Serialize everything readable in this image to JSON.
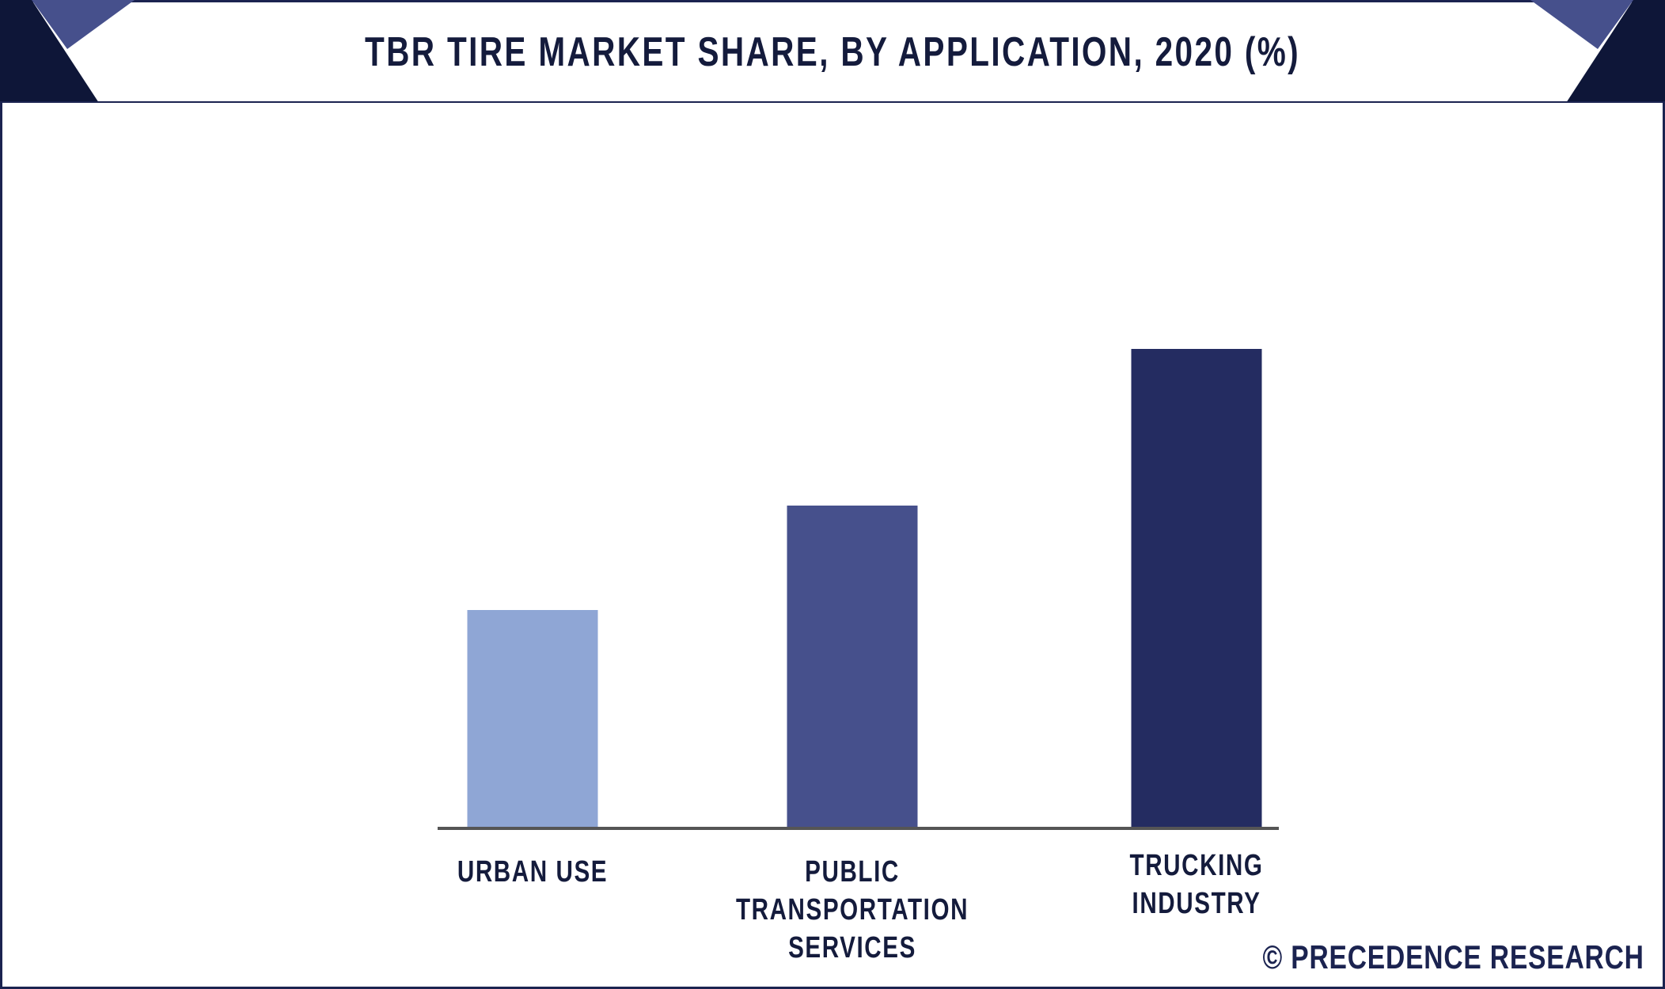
{
  "header": {
    "title": "TBR TIRE MARKET SHARE, BY APPLICATION, 2020 (%)"
  },
  "colors": {
    "navy": "#1b2350",
    "accent": "#46508c"
  },
  "chart_data": {
    "type": "bar",
    "title": "TBR TIRE MARKET SHARE, BY APPLICATION, 2020 (%)",
    "categories": [
      "URBAN USE",
      "PUBLIC TRANSPORTATION SERVICES",
      "TRUCKING INDUSTRY"
    ],
    "category_lines": [
      [
        "URBAN USE"
      ],
      [
        "PUBLIC TRANSPORTATION",
        "SERVICES"
      ],
      [
        "TRUCKING",
        "INDUSTRY"
      ]
    ],
    "values": [
      23,
      34,
      50.5
    ],
    "colors": [
      "#8fa6d5",
      "#46508c",
      "#242c61"
    ],
    "xlabel": "",
    "ylabel": "",
    "ylim": [
      0,
      100
    ],
    "grid": false,
    "legend": "none"
  },
  "footer": {
    "source": "© PRECEDENCE RESEARCH"
  }
}
